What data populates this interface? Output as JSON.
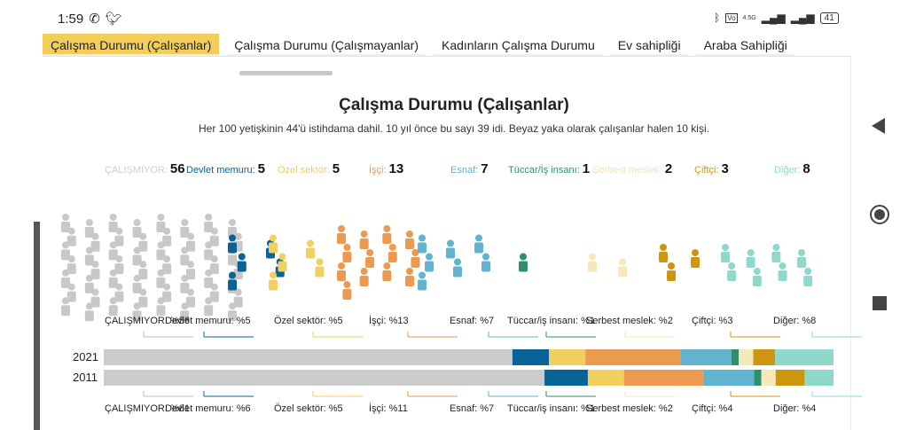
{
  "status": {
    "time": "1:59",
    "icons": [
      "whatsapp-icon",
      "twitter-icon"
    ],
    "right_icons": [
      "bluetooth-icon",
      "volte-icon",
      "signal-4g-icon",
      "signal-icon"
    ],
    "network": "4.5G",
    "battery": "41"
  },
  "tabs": [
    {
      "label": "Çalışma Durumu (Çalışanlar)",
      "active": true
    },
    {
      "label": "Çalışma Durumu (Çalışmayanlar)"
    },
    {
      "label": "Kadınların Çalışma Durumu"
    },
    {
      "label": "Ev sahipliği"
    },
    {
      "label": "Araba Sahipliği"
    }
  ],
  "title": "Çalışma Durumu (Çalışanlar)",
  "subtitle": "Her 100 yetişkinin 44'ü istihdama dahil. 10 yıl önce bu sayı 39 idi. Beyaz yaka olarak çalışanlar halen 10 kişi.",
  "chart_data": {
    "type": "stacked-bar-pictogram",
    "categories": [
      "ÇALIŞMIYOR",
      "Devlet memuru",
      "Özel sektör",
      "İşçi",
      "Esnaf",
      "Tüccar/iş insanı",
      "Serbest meslek",
      "Çiftçi",
      "Diğer"
    ],
    "colors": [
      "#cccccc",
      "#0a6396",
      "#f2d060",
      "#ec9a4f",
      "#62b3cf",
      "#2e8f6a",
      "#f6e8b8",
      "#cc9610",
      "#8fd9cb"
    ],
    "series": [
      {
        "name": "2021",
        "values": [
          56,
          5,
          5,
          13,
          7,
          1,
          2,
          3,
          8
        ]
      },
      {
        "name": "2011",
        "values": [
          61,
          6,
          5,
          11,
          7,
          1,
          2,
          4,
          4
        ]
      }
    ],
    "count_labels": [
      "ÇALIŞMIYOR:",
      "Devlet memuru:",
      "Özel sektör:",
      "İşçi:",
      "Esnaf:",
      "Tüccar/İş insanı:",
      "Serbest meslek:",
      "Çiftçi:",
      "Diğer:"
    ],
    "top_labels": [
      "ÇALIŞMIYOR: %56",
      "Devlet memuru: %5",
      "Özel sektör: %5",
      "İşçi: %13",
      "Esnaf: %7",
      "Tüccar/iş insanı: %1",
      "Serbest meslek: %2",
      "Çiftçi: %3",
      "Diğer: %8"
    ],
    "bottom_labels": [
      "ÇALIŞMIYOR: %61",
      "Devlet memuru: %6",
      "Özel sektör: %5",
      "İşçi: %11",
      "Esnaf: %7",
      "Tüccar/iş insanı: %1",
      "Serbest meslek: %2",
      "Çiftçi: %4",
      "Diğer: %4"
    ]
  },
  "navbar": [
    "back-icon",
    "home-icon",
    "recents-icon"
  ]
}
